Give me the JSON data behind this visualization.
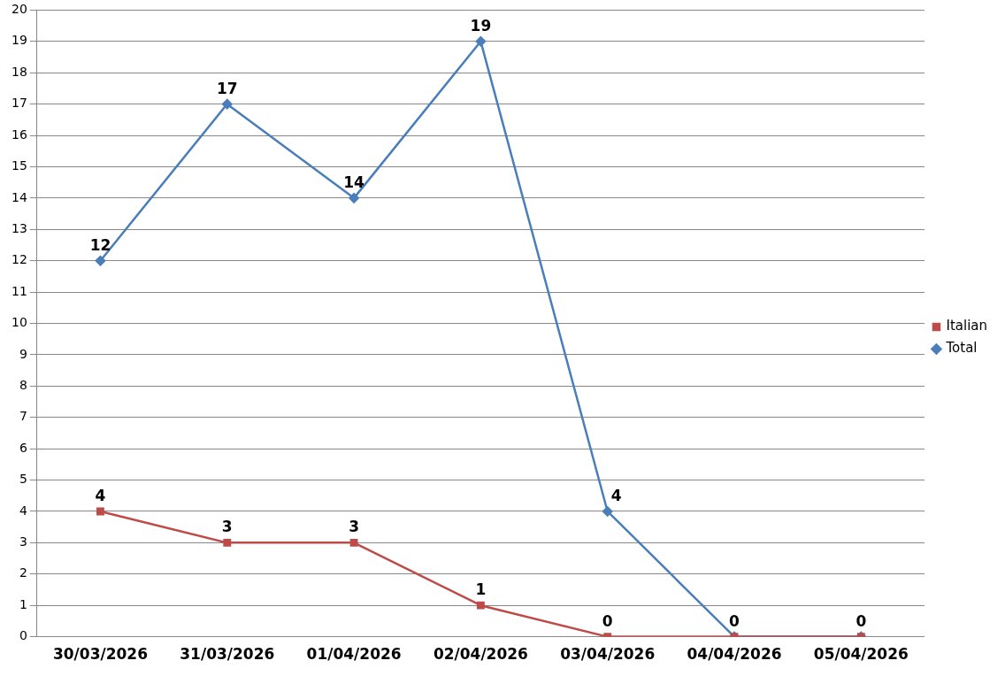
{
  "chart_data": {
    "type": "line",
    "categories": [
      "30/03/2026",
      "31/03/2026",
      "01/04/2026",
      "02/04/2026",
      "03/04/2026",
      "04/04/2026",
      "05/04/2026"
    ],
    "series": [
      {
        "name": "Total",
        "color": "#4a7ebb",
        "marker": "diamond",
        "values": [
          12,
          17,
          14,
          19,
          4,
          0,
          0
        ],
        "value_labels": [
          "12",
          "17",
          "14",
          "19",
          "4",
          null,
          null
        ]
      },
      {
        "name": "Italian",
        "color": "#be4b48",
        "marker": "square",
        "values": [
          4,
          3,
          3,
          1,
          0,
          0,
          0
        ],
        "value_labels": [
          "4",
          "3",
          "3",
          "1",
          "0",
          "0",
          "0"
        ]
      }
    ],
    "ylim": [
      0,
      20
    ],
    "yticks": [
      0,
      1,
      2,
      3,
      4,
      5,
      6,
      7,
      8,
      9,
      10,
      11,
      12,
      13,
      14,
      15,
      16,
      17,
      18,
      19,
      20
    ],
    "grid": "y",
    "legend": "right",
    "line_style": "solid"
  }
}
